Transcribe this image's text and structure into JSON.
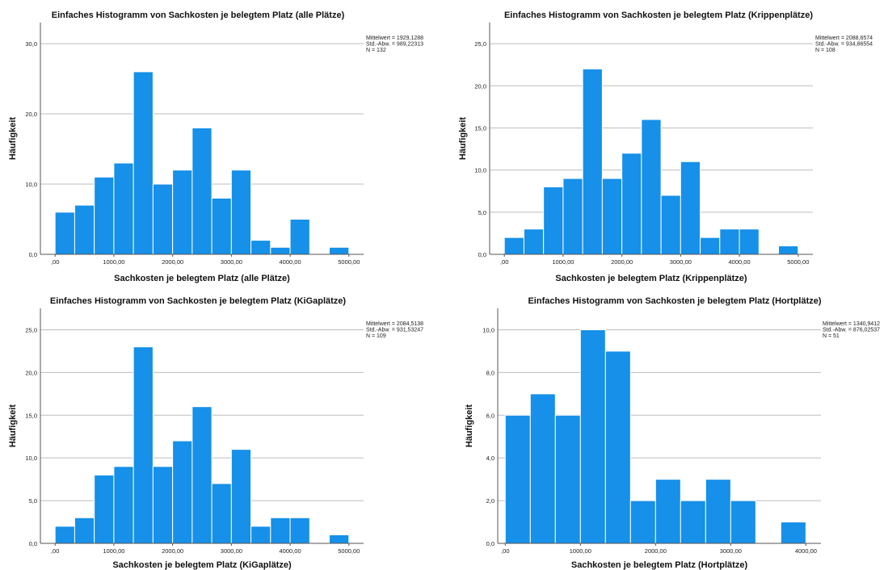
{
  "chart_data": [
    {
      "type": "bar",
      "title": "Einfaches Histogramm von Sachkosten je belegtem Platz (alle Plätze)",
      "xlabel": "Sachkosten je belegtem Platz (alle Plätze)",
      "ylabel": "Häufigkeit",
      "xlim": [
        -250,
        5250
      ],
      "ylim": [
        0,
        33
      ],
      "xticks": [
        0,
        1000,
        2000,
        3000,
        4000,
        5000
      ],
      "xtick_labels": [
        ",00",
        "1000,00",
        "2000,00",
        "3000,00",
        "4000,00",
        "5000,00"
      ],
      "yticks": [
        0,
        10,
        20,
        30
      ],
      "ytick_labels": [
        "0,0",
        "10,0",
        "20,0",
        "30,0"
      ],
      "grid": true,
      "bin_start": 0,
      "bin_width": 333.3,
      "values": [
        6,
        7,
        11,
        13,
        26,
        10,
        12,
        18,
        8,
        12,
        2,
        1,
        5,
        0,
        1
      ],
      "stats": [
        "Mittelwert = 1929,1288",
        "Std.-Abw. = 989,22313",
        "N = 132"
      ]
    },
    {
      "type": "bar",
      "title": "Einfaches Histogramm von Sachkosten je belegtem Platz (Krippenplätze)",
      "xlabel": "Sachkosten je belegtem Platz (Krippenplätze)",
      "ylabel": "Häufigkeit",
      "xlim": [
        -250,
        5250
      ],
      "ylim": [
        0,
        27.5
      ],
      "xticks": [
        0,
        1000,
        2000,
        3000,
        4000,
        5000
      ],
      "xtick_labels": [
        ",00",
        "1000,00",
        "2000,00",
        "3000,00",
        "4000,00",
        "5000,00"
      ],
      "yticks": [
        0,
        5,
        10,
        15,
        20,
        25
      ],
      "ytick_labels": [
        "0,0",
        "5,0",
        "10,0",
        "15,0",
        "20,0",
        "25,0"
      ],
      "grid": true,
      "bin_start": 0,
      "bin_width": 333.3,
      "values": [
        2,
        3,
        8,
        9,
        22,
        9,
        12,
        16,
        7,
        11,
        2,
        3,
        3,
        0,
        1
      ],
      "stats": [
        "Mittelwert = 2088,6574",
        "Std.-Abw. = 934,86554",
        "N = 108"
      ]
    },
    {
      "type": "bar",
      "title": "Einfaches Histogramm von Sachkosten je belegtem Platz (KiGaplätze)",
      "xlabel": "Sachkosten je belegtem Platz (KiGaplätze)",
      "ylabel": "Häufigkeit",
      "xlim": [
        -250,
        5250
      ],
      "ylim": [
        0,
        27.5
      ],
      "xticks": [
        0,
        1000,
        2000,
        3000,
        4000,
        5000
      ],
      "xtick_labels": [
        ",00",
        "1000,00",
        "2000,00",
        "3000,00",
        "4000,00",
        "5000,00"
      ],
      "yticks": [
        0,
        5,
        10,
        15,
        20,
        25
      ],
      "ytick_labels": [
        "0,0",
        "5,0",
        "10,0",
        "15,0",
        "20,0",
        "25,0"
      ],
      "grid": true,
      "bin_start": 0,
      "bin_width": 333.3,
      "values": [
        2,
        3,
        8,
        9,
        23,
        9,
        12,
        16,
        7,
        11,
        2,
        3,
        3,
        0,
        1
      ],
      "stats": [
        "Mittelwert = 2084,5138",
        "Std.-Abw. = 931,53247",
        "N = 109"
      ]
    },
    {
      "type": "bar",
      "title": "Einfaches Histogramm von Sachkosten je belegtem Platz (Hortplätze)",
      "xlabel": "Sachkosten je belegtem Platz (Hortplätze)",
      "ylabel": "Häufigkeit",
      "xlim": [
        -100,
        4200
      ],
      "ylim": [
        0,
        11
      ],
      "xticks": [
        0,
        1000,
        2000,
        3000,
        4000
      ],
      "xtick_labels": [
        ",00",
        "1000,00",
        "2000,00",
        "3000,00",
        "4000,00"
      ],
      "yticks": [
        0,
        2,
        4,
        6,
        8,
        10
      ],
      "ytick_labels": [
        "0,0",
        "2,0",
        "4,0",
        "6,0",
        "8,0",
        "10,0"
      ],
      "grid": true,
      "bin_start": 0,
      "bin_width": 333.3,
      "values": [
        6,
        7,
        6,
        10,
        9,
        2,
        3,
        2,
        3,
        2,
        0,
        1
      ],
      "stats": [
        "Mittelwert = 1340,9412",
        "Std.-Abw. = 876,02537",
        "N = 51"
      ]
    }
  ]
}
